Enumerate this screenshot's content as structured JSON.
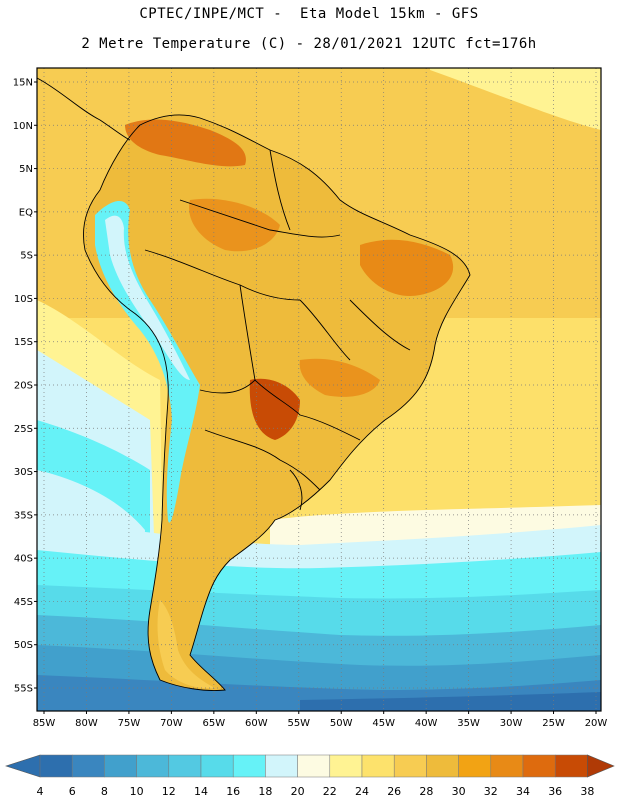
{
  "header": {
    "line1": "CPTEC/INPE/MCT -  Eta Model 15km - GFS",
    "line2": "2 Metre Temperature (C) - 28/01/2021 12UTC fct=176h"
  },
  "map": {
    "lat_labels": [
      "15N",
      "10N",
      "5N",
      "EQ",
      "5S",
      "10S",
      "15S",
      "20S",
      "25S",
      "30S",
      "35S",
      "40S",
      "45S",
      "50S",
      "55S"
    ],
    "lon_labels": [
      "85W",
      "80W",
      "75W",
      "70W",
      "65W",
      "60W",
      "55W",
      "50W",
      "45W",
      "40W",
      "35W",
      "30W",
      "25W",
      "20W"
    ],
    "lat_values": [
      15,
      10,
      5,
      0,
      -5,
      -10,
      -15,
      -20,
      -25,
      -30,
      -35,
      -40,
      -45,
      -50,
      -55
    ],
    "lon_values": [
      -85,
      -80,
      -75,
      -70,
      -65,
      -60,
      -55,
      -50,
      -45,
      -40,
      -35,
      -30,
      -25,
      -20
    ]
  },
  "colorbar": {
    "labels": [
      "4",
      "6",
      "8",
      "10",
      "12",
      "14",
      "16",
      "18",
      "20",
      "22",
      "24",
      "26",
      "28",
      "30",
      "32",
      "34",
      "36",
      "38"
    ],
    "colors": [
      "#2d6fae",
      "#3a86bf",
      "#41a0cc",
      "#4cb8d9",
      "#53c9e2",
      "#57dbea",
      "#66f2f7",
      "#d2f5fb",
      "#fdfbe2",
      "#fff393",
      "#fde26c",
      "#f7cc52",
      "#eebb3b",
      "#f2a314",
      "#e88a16",
      "#de6b0e",
      "#c84b05",
      "#b03a06"
    ]
  }
}
